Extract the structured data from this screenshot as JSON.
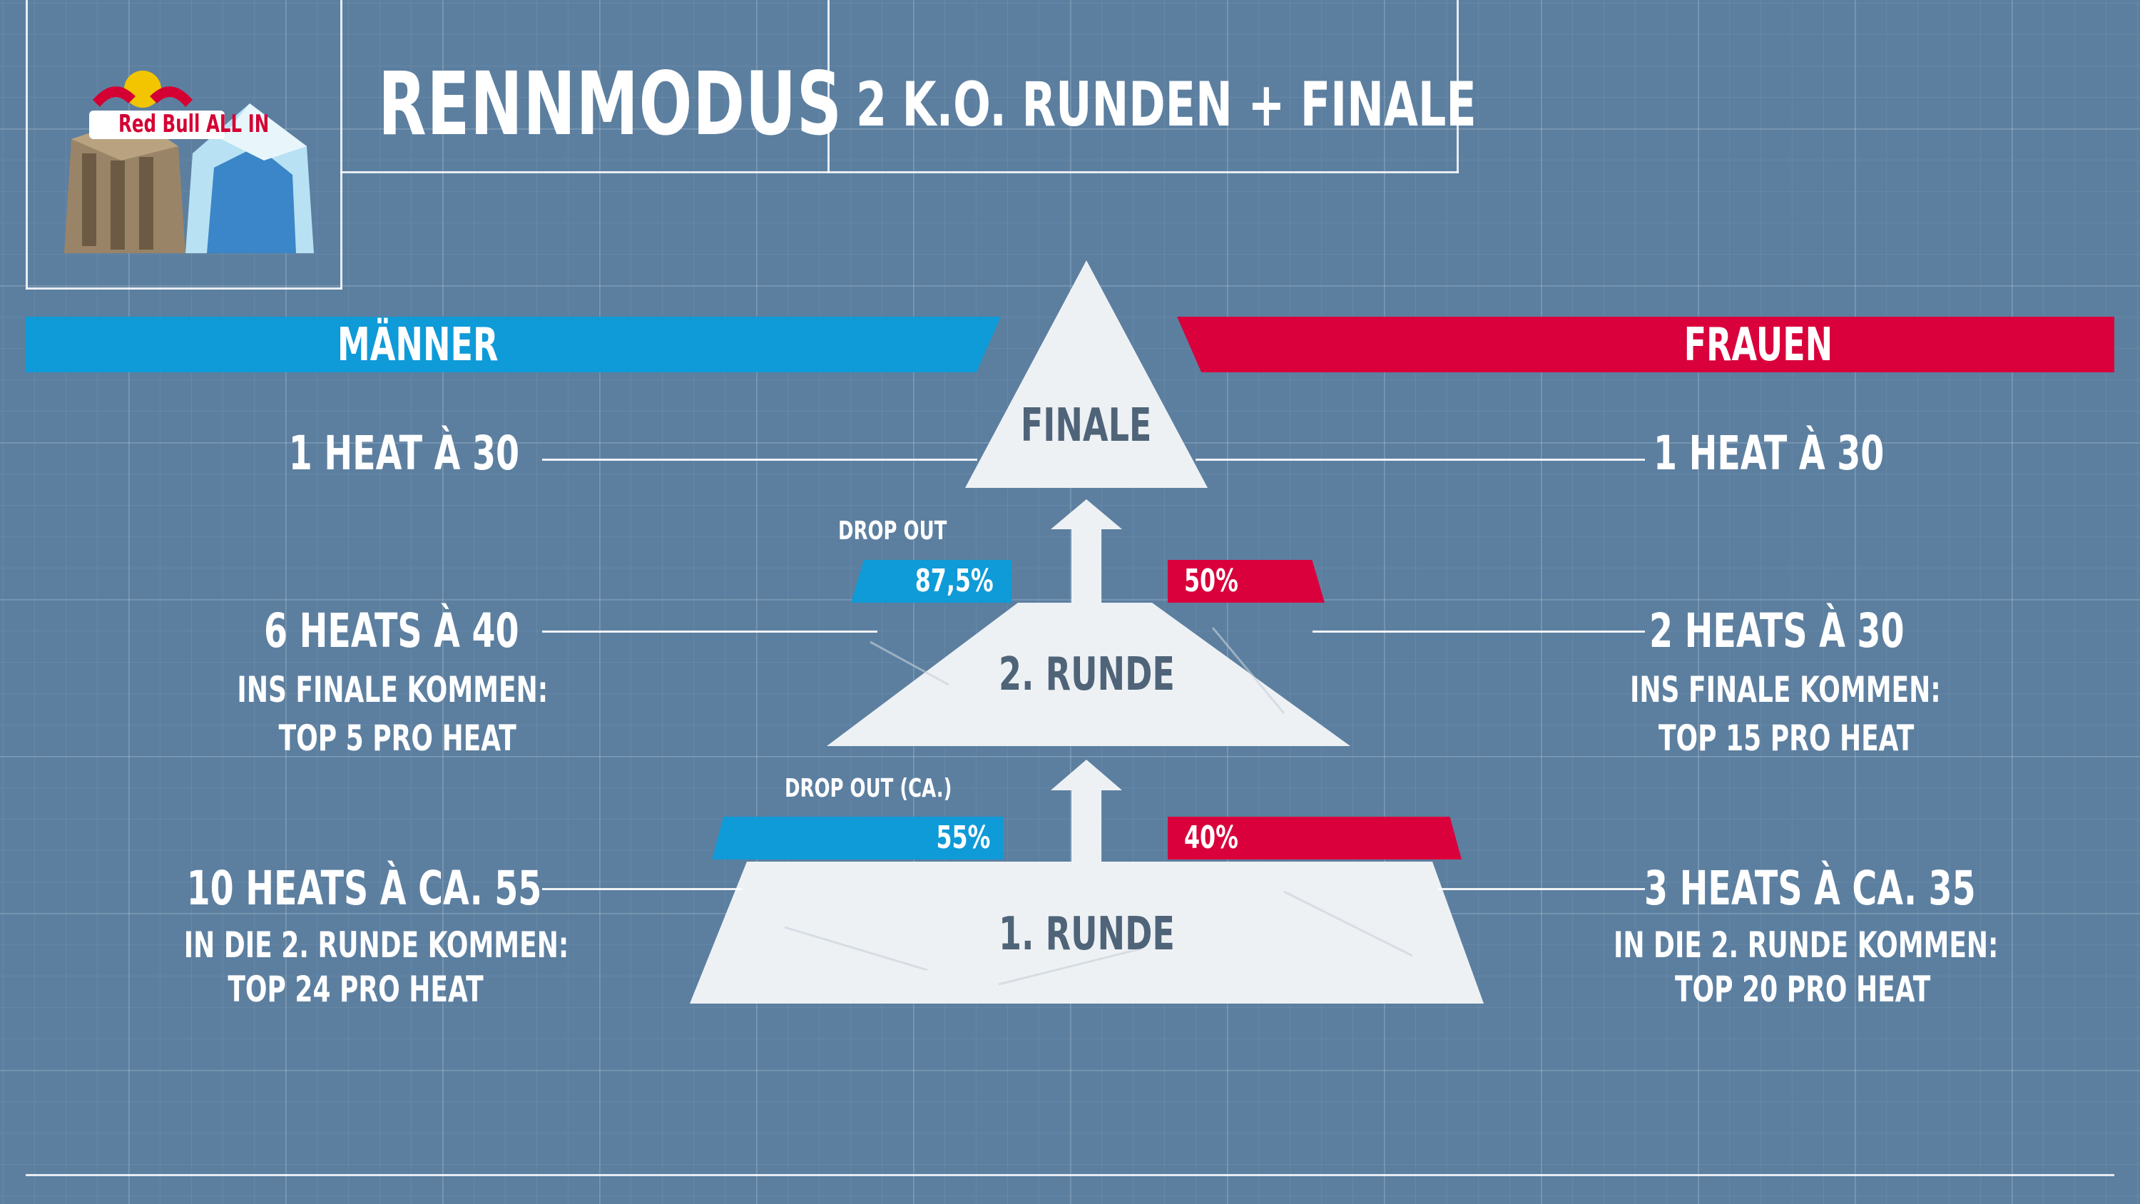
{
  "header": {
    "logo_text": "Red Bull ALL IN",
    "title": "RENNMODUS",
    "subtitle": "2 K.O. RUNDEN + FINALE"
  },
  "categories": {
    "men": "MÄNNER",
    "women": "FRAUEN"
  },
  "colors": {
    "men_blue": "#0f9ad8",
    "women_red": "#d9003c",
    "background": "#5c7fa0",
    "pyramid": "#eef1f4",
    "pyramid_text": "#4f6478"
  },
  "pyramid": {
    "finale": "FINALE",
    "round2": "2. RUNDE",
    "round1": "1. RUNDE"
  },
  "dropouts": {
    "upper_label": "DROP OUT",
    "upper_men": "87,5%",
    "upper_women": "50%",
    "lower_label": "DROP OUT (CA.)",
    "lower_men": "55%",
    "lower_women": "40%"
  },
  "men": {
    "finale": "1 HEAT À 30",
    "round2_heats": "6 HEATS À 40",
    "round2_note1": "INS FINALE KOMMEN:",
    "round2_note2": "TOP 5 PRO HEAT",
    "round1_heats": "10 HEATS À CA. 55",
    "round1_note1": "IN DIE 2. RUNDE KOMMEN:",
    "round1_note2": "TOP 24 PRO HEAT"
  },
  "women": {
    "finale": "1 HEAT À 30",
    "round2_heats": "2 HEATS À 30",
    "round2_note1": "INS FINALE KOMMEN:",
    "round2_note2": "TOP 15 PRO HEAT",
    "round1_heats": "3 HEATS À CA. 35",
    "round1_note1": "IN DIE 2. RUNDE KOMMEN:",
    "round1_note2": "TOP 20 PRO HEAT"
  }
}
